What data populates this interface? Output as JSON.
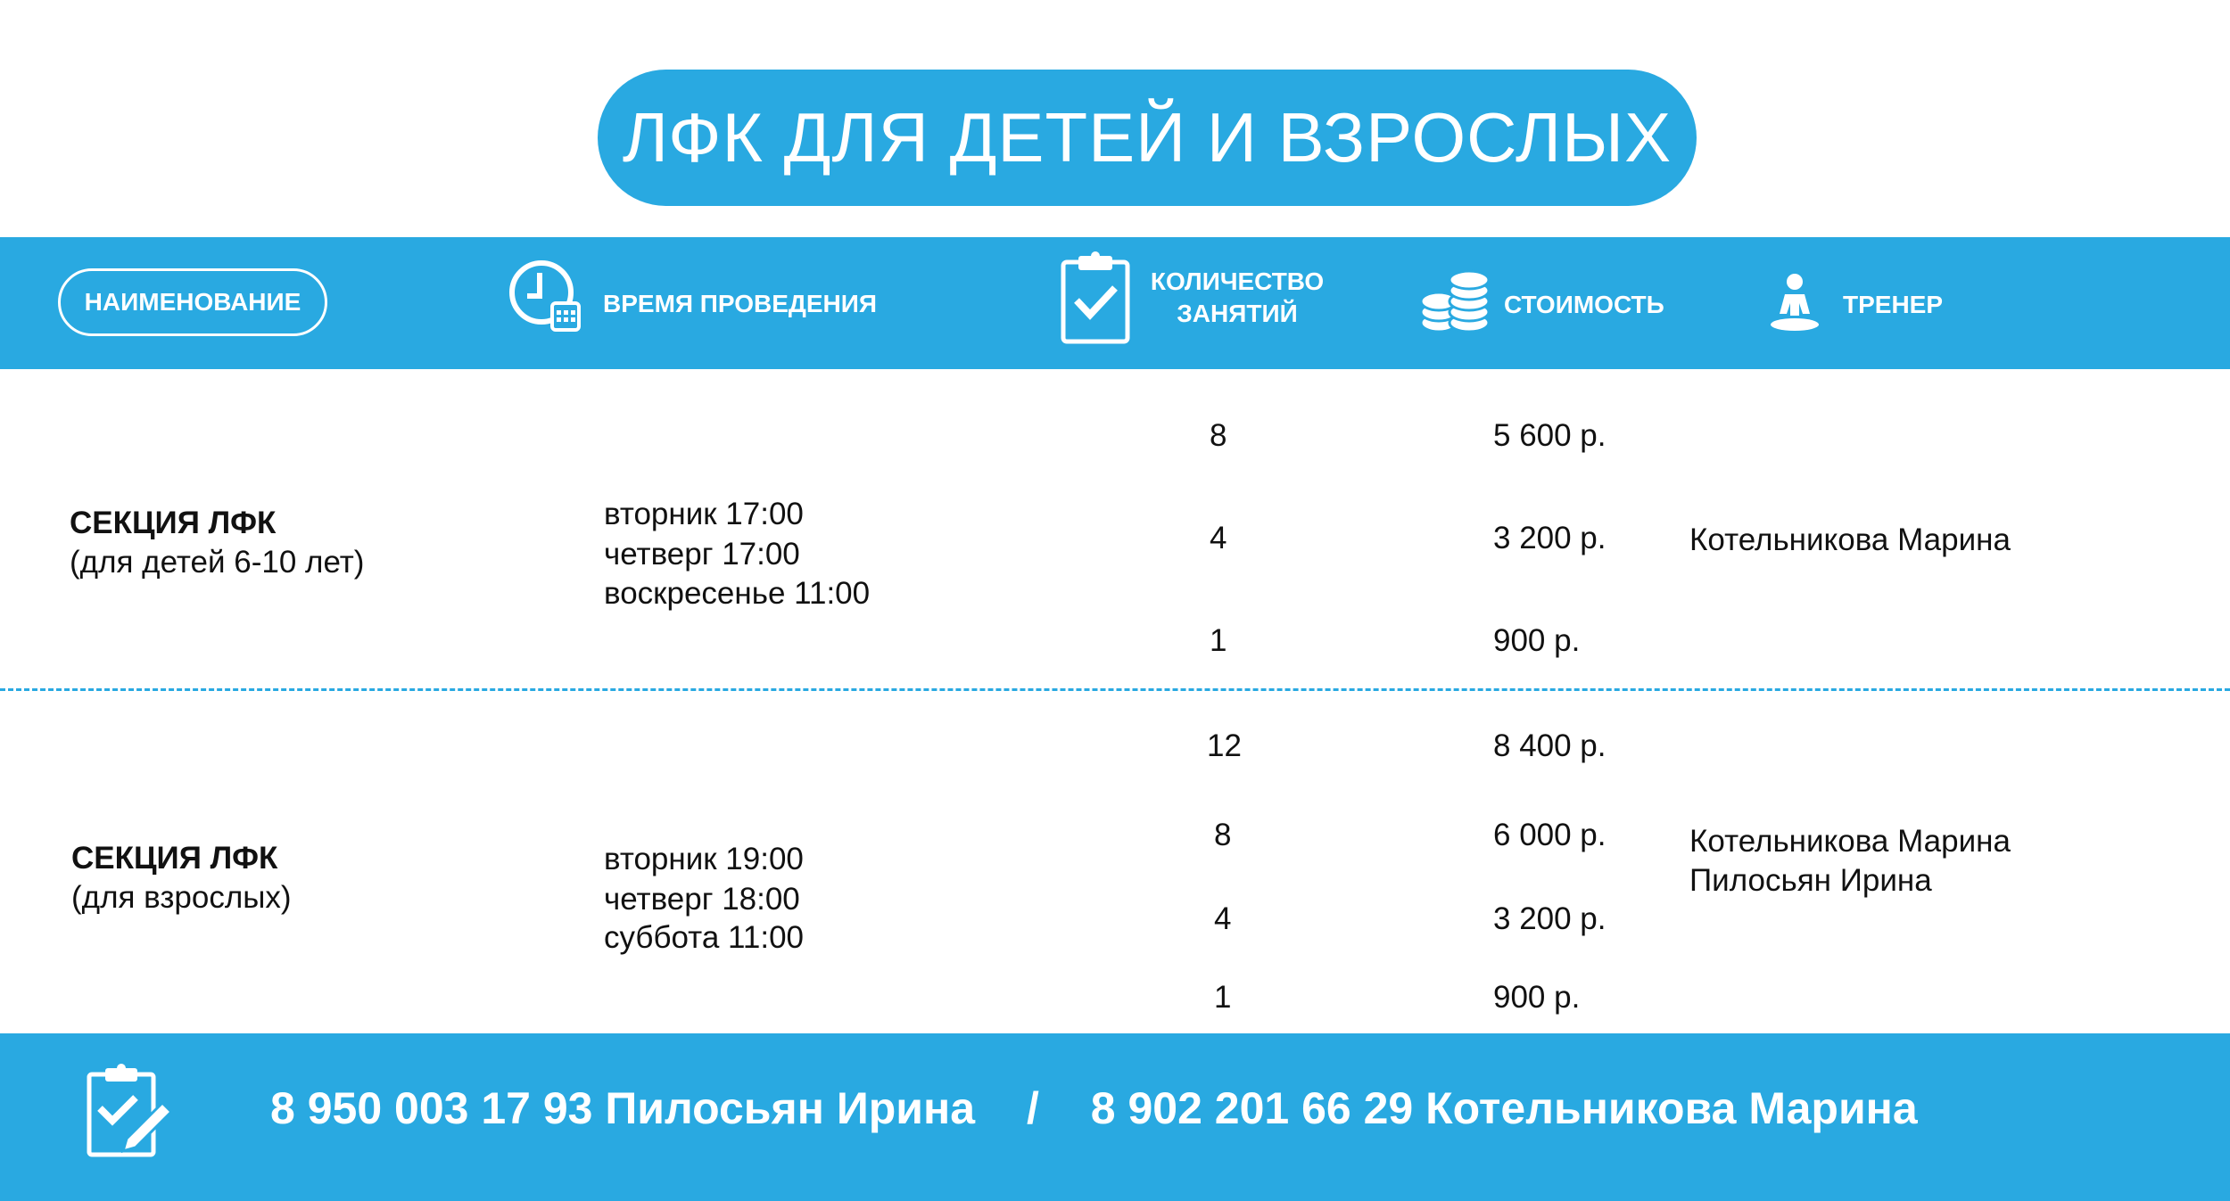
{
  "title": "ЛФК ДЛЯ ДЕТЕЙ И ВЗРОСЛЫХ",
  "accent_color": "#29a9e1",
  "header": {
    "name": "НАИМЕНОВАНИЕ",
    "time": {
      "label": "ВРЕМЯ ПРОВЕДЕНИЯ",
      "icon": "clock-calendar-icon"
    },
    "count": {
      "line1": "КОЛИЧЕСТВО",
      "line2": "ЗАНЯТИЙ",
      "icon": "clipboard-check-icon"
    },
    "price": {
      "label": "СТОИМОСТЬ",
      "icon": "coins-icon"
    },
    "trainer": {
      "label": "ТРЕНЕР",
      "icon": "person-meditation-icon"
    }
  },
  "sections": [
    {
      "title": "СЕКЦИЯ ЛФК",
      "subtitle": "(для детей 6-10 лет)",
      "schedule": [
        "вторник 17:00",
        "четверг 17:00",
        "воскресенье 11:00"
      ],
      "prices": [
        {
          "count": "8",
          "price": "5 600 р."
        },
        {
          "count": "4",
          "price": "3 200 р."
        },
        {
          "count": "1",
          "price": "900 р."
        }
      ],
      "trainers": [
        "Котельникова Марина"
      ]
    },
    {
      "title": "СЕКЦИЯ ЛФК",
      "subtitle": "(для взрослых)",
      "schedule": [
        "вторник 19:00",
        "четверг 18:00",
        "суббота 11:00"
      ],
      "prices": [
        {
          "count": "12",
          "price": "8 400 р."
        },
        {
          "count": "8",
          "price": "6 000 р."
        },
        {
          "count": "4",
          "price": "3 200 р."
        },
        {
          "count": "1",
          "price": "900 р."
        }
      ],
      "trainers": [
        "Котельникова Марина",
        "Пилосьян Ирина"
      ]
    }
  ],
  "footer": {
    "icon": "clipboard-pen-icon",
    "contact1": "8 950 003 17 93 Пилосьян Ирина",
    "separator": "/",
    "contact2": "8 902 201 66 29 Котельникова Марина"
  }
}
